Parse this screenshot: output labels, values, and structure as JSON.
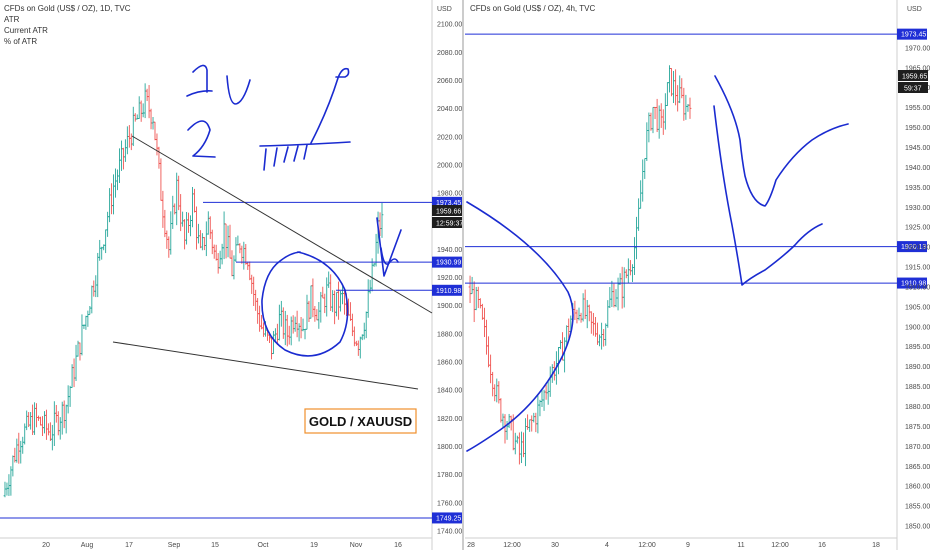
{
  "colors": {
    "up": "#26a69a",
    "down": "#ef5350",
    "level": "#1f2fd6",
    "draw": "#1a2bd0",
    "trend": "#333333",
    "orange": "#f0902c"
  },
  "left_panel": {
    "header": {
      "title": "CFDs on Gold (US$ / OZ), 1D, TVC",
      "indicator1": "ATR",
      "indicator2": "Current ATR",
      "indicator3": "% of ATR"
    },
    "currency": "USD",
    "y_ticks": [
      "2100.00",
      "2080.00",
      "2060.00",
      "2040.00",
      "2020.00",
      "2000.00",
      "1980.00",
      "1960.00",
      "1940.00",
      "1920.00",
      "1900.00",
      "1880.00",
      "1860.00",
      "1840.00",
      "1820.00",
      "1800.00",
      "1780.00",
      "1760.00",
      "1740.00"
    ],
    "x_ticks": [
      "20",
      "Aug",
      "17",
      "Sep",
      "15",
      "Oct",
      "19",
      "Nov",
      "16"
    ],
    "price_badge": "1959.66",
    "countdown_badge": "12:59:37",
    "level_badges": [
      "1973.45",
      "1930.99",
      "1910.98",
      "1749.25"
    ],
    "watermark": "GOLD / XAUUSD"
  },
  "right_panel": {
    "header": {
      "title": "CFDs on Gold (US$ / OZ), 4h, TVC"
    },
    "currency": "USD",
    "y_ticks": [
      "1970.00",
      "1965.00",
      "1960.00",
      "1955.00",
      "1950.00",
      "1945.00",
      "1940.00",
      "1935.00",
      "1930.00",
      "1925.00",
      "1920.00",
      "1915.00",
      "1910.00",
      "1905.00",
      "1900.00",
      "1895.00",
      "1890.00",
      "1885.00",
      "1880.00",
      "1875.00",
      "1870.00",
      "1865.00",
      "1860.00",
      "1855.00",
      "1850.00"
    ],
    "x_ticks": [
      "28",
      "12:00",
      "30",
      "4",
      "12:00",
      "9",
      "11",
      "12:00",
      "16",
      "18"
    ],
    "price_badge": "1959.65",
    "countdown_badge": "59:37",
    "level_badges": [
      "1973.45",
      "1920.13",
      "1910.98"
    ]
  },
  "chart_data": [
    {
      "type": "candlestick",
      "title": "CFDs on Gold (US$ / OZ), 1D, TVC",
      "ylabel": "USD",
      "ylim": [
        1735,
        2103
      ],
      "x_ticks": [
        "20",
        "Aug",
        "17",
        "Sep",
        "15",
        "Oct",
        "19",
        "Nov",
        "16"
      ],
      "last_price": 1959.66,
      "horizontal_levels": [
        1973.45,
        1930.99,
        1910.98,
        1749.25
      ],
      "trendlines": [
        {
          "from": [
            "Aug",
            2015
          ],
          "to": [
            "Nov 16",
            1880
          ]
        },
        {
          "from": [
            "Aug",
            1865
          ],
          "to": [
            "Nov 20",
            1830
          ]
        }
      ],
      "close_path": [
        [
          0,
          1765
        ],
        [
          8,
          1805
        ],
        [
          16,
          1820
        ],
        [
          24,
          1810
        ],
        [
          32,
          1830
        ],
        [
          40,
          1880
        ],
        [
          48,
          1930
        ],
        [
          56,
          1985
        ],
        [
          64,
          2020
        ],
        [
          72,
          2045
        ],
        [
          76,
          2035
        ],
        [
          80,
          1980
        ],
        [
          84,
          1940
        ],
        [
          88,
          1985
        ],
        [
          92,
          1945
        ],
        [
          96,
          1975
        ],
        [
          100,
          1935
        ],
        [
          104,
          1960
        ],
        [
          108,
          1930
        ],
        [
          112,
          1955
        ],
        [
          116,
          1925
        ],
        [
          120,
          1945
        ],
        [
          124,
          1935
        ],
        [
          128,
          1900
        ],
        [
          132,
          1880
        ],
        [
          136,
          1870
        ],
        [
          140,
          1890
        ],
        [
          144,
          1880
        ],
        [
          148,
          1895
        ],
        [
          152,
          1885
        ],
        [
          156,
          1905
        ],
        [
          160,
          1895
        ],
        [
          164,
          1910
        ],
        [
          168,
          1900
        ],
        [
          172,
          1905
        ],
        [
          176,
          1885
        ],
        [
          180,
          1875
        ],
        [
          184,
          1895
        ],
        [
          188,
          1930
        ],
        [
          190,
          1955
        ],
        [
          192,
          1960
        ]
      ],
      "annotations": [
        "1",
        "2",
        "GOLD / XAUUSD"
      ]
    },
    {
      "type": "candlestick",
      "title": "CFDs on Gold (US$ / OZ), 4h, TVC",
      "ylabel": "USD",
      "ylim": [
        1847,
        1977
      ],
      "x_ticks": [
        "28",
        "12:00",
        "30",
        "4",
        "12:00",
        "9",
        "11",
        "12:00",
        "16",
        "18"
      ],
      "last_price": 1959.65,
      "horizontal_levels": [
        1973.45,
        1920.13,
        1910.98
      ],
      "close_path": [
        [
          0,
          1910
        ],
        [
          5,
          1905
        ],
        [
          10,
          1893
        ],
        [
          15,
          1880
        ],
        [
          20,
          1875
        ],
        [
          25,
          1868
        ],
        [
          30,
          1875
        ],
        [
          35,
          1880
        ],
        [
          40,
          1888
        ],
        [
          45,
          1893
        ],
        [
          50,
          1902
        ],
        [
          55,
          1905
        ],
        [
          60,
          1900
        ],
        [
          65,
          1898
        ],
        [
          70,
          1908
        ],
        [
          75,
          1910
        ],
        [
          80,
          1918
        ],
        [
          82,
          1922
        ],
        [
          86,
          1945
        ],
        [
          90,
          1955
        ],
        [
          94,
          1950
        ],
        [
          98,
          1962
        ],
        [
          102,
          1958
        ],
        [
          106,
          1955
        ],
        [
          108,
          1958
        ]
      ]
    }
  ]
}
